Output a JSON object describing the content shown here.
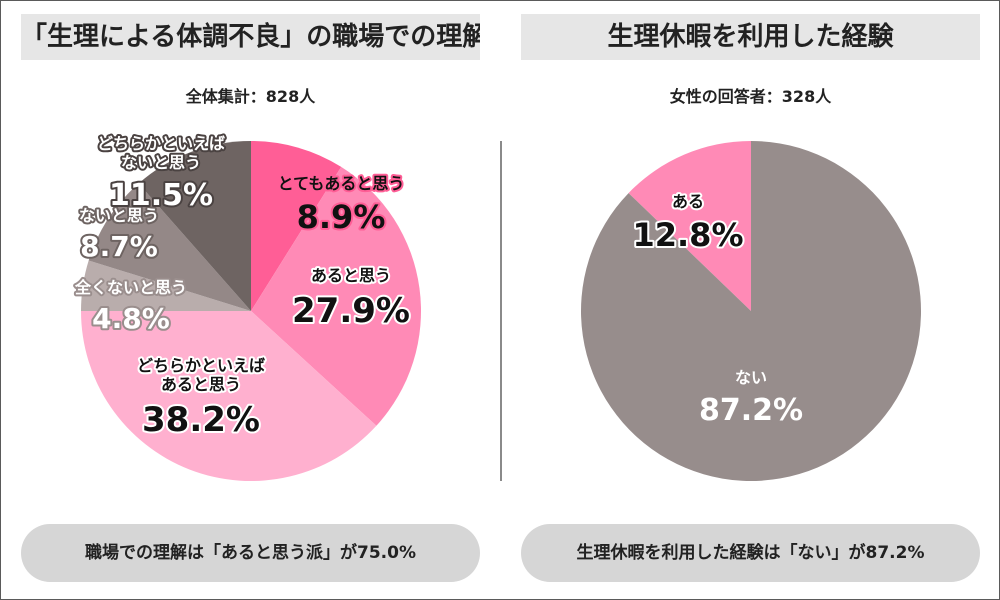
{
  "left_panel": {
    "title": "「生理による体調不良」の職場での理解",
    "subtitle": "全体集計：828人",
    "footer": "職場での理解は「あると思う派」が75.0%"
  },
  "right_panel": {
    "title": "生理休暇を利用した経験",
    "subtitle": "女性の回答者：328人",
    "footer": "生理休暇を利用した経験は「ない」が87.2%"
  },
  "colors": {
    "とてもあると思う": "#ff5e96",
    "あると思う": "#ff8ab6",
    "どちらかといえばあると思う": "#ffb0cf",
    "全くないと思う": "#b9adac",
    "ないと思う": "#948887",
    "どちらかといえばないと思う": "#6e6462",
    "ある": "#ff8ab6",
    "ない": "#978d8c"
  },
  "chart_data": [
    {
      "type": "pie",
      "title": "「生理による体調不良」の職場での理解",
      "subtitle": "全体集計：828人",
      "start": "12 o'clock",
      "direction": "clockwise",
      "slices": [
        {
          "label_lines": [
            "とてもあると思う"
          ],
          "label": "とてもあると思う",
          "value": 8.9,
          "display": "8.9%"
        },
        {
          "label_lines": [
            "あると思う"
          ],
          "label": "あると思う",
          "value": 27.9,
          "display": "27.9%"
        },
        {
          "label_lines": [
            "どちらかといえば",
            "あると思う"
          ],
          "label": "どちらかといえばあると思う",
          "value": 38.2,
          "display": "38.2%"
        },
        {
          "label_lines": [
            "全くないと思う"
          ],
          "label": "全くないと思う",
          "value": 4.8,
          "display": "4.8%"
        },
        {
          "label_lines": [
            "ないと思う"
          ],
          "label": "ないと思う",
          "value": 8.7,
          "display": "8.7%"
        },
        {
          "label_lines": [
            "どちらかといえば",
            "ないと思う"
          ],
          "label": "どちらかといえばないと思う",
          "value": 11.5,
          "display": "11.5%"
        }
      ]
    },
    {
      "type": "pie",
      "title": "生理休暇を利用した経験",
      "subtitle": "女性の回答者：328人",
      "start": "12 o'clock",
      "direction": "counter-clockwise",
      "slices": [
        {
          "label_lines": [
            "ある"
          ],
          "label": "ある",
          "value": 12.8,
          "display": "12.8%"
        },
        {
          "label_lines": [
            "ない"
          ],
          "label": "ない",
          "value": 87.2,
          "display": "87.2%"
        }
      ]
    }
  ]
}
